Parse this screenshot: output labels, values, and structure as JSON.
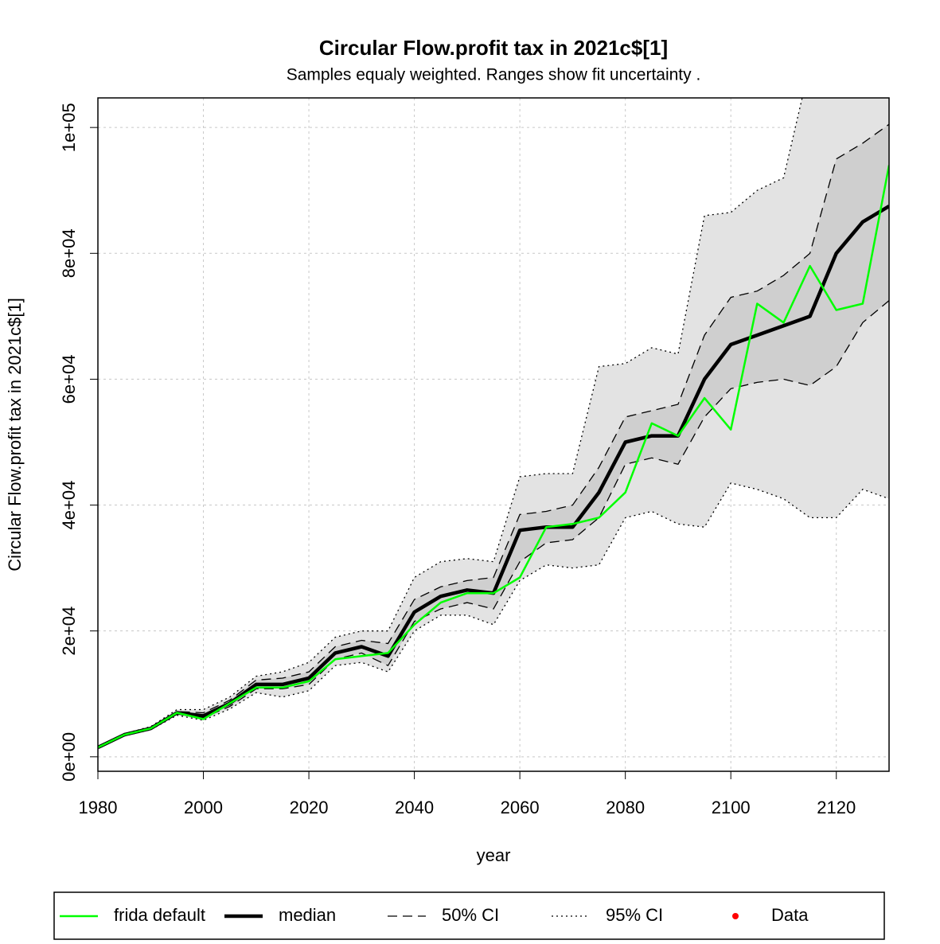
{
  "chart_data": {
    "type": "line",
    "title": "Circular Flow.profit tax in 2021c$[1]",
    "subtitle": "Samples equaly weighted. Ranges show  fit uncertainty .",
    "x_label": "year",
    "y_label": "Circular Flow.profit tax in 2021c$[1]",
    "x": [
      1980,
      1985,
      1990,
      1995,
      2000,
      2005,
      2010,
      2015,
      2020,
      2025,
      2030,
      2035,
      2040,
      2045,
      2050,
      2055,
      2060,
      2065,
      2070,
      2075,
      2080,
      2085,
      2090,
      2095,
      2100,
      2105,
      2110,
      2115,
      2120,
      2125,
      2130
    ],
    "series": [
      {
        "name": "frida default",
        "color": "#00ff00",
        "style": "solid",
        "values": [
          1500,
          3500,
          4500,
          7000,
          6000,
          8500,
          11000,
          11000,
          12000,
          15500,
          16000,
          16500,
          21000,
          24500,
          26000,
          26000,
          28500,
          36500,
          37000,
          38000,
          42000,
          53000,
          51000,
          57000,
          52000,
          72000,
          69000,
          78000,
          71000,
          72000,
          94000
        ]
      },
      {
        "name": "median",
        "color": "#000000",
        "style": "thick",
        "values": [
          1500,
          3500,
          4500,
          7000,
          6500,
          8500,
          11500,
          11500,
          12500,
          16500,
          17500,
          16000,
          23000,
          25500,
          26500,
          26000,
          36000,
          36500,
          36500,
          42000,
          50000,
          51000,
          51000,
          60000,
          65500,
          67000,
          68500,
          70000,
          80000,
          85000,
          87500
        ]
      },
      {
        "name": "50% CI",
        "color": "#000000",
        "style": "dashed",
        "band_color": "#cfcfcf",
        "lower": [
          1500,
          3400,
          4400,
          6800,
          6200,
          8000,
          10800,
          10800,
          11500,
          15500,
          16500,
          14500,
          21500,
          23500,
          24500,
          23500,
          31000,
          34000,
          34500,
          38000,
          46500,
          47500,
          46500,
          54000,
          58500,
          59500,
          60000,
          59000,
          62000,
          69000,
          72500
        ],
        "upper": [
          1600,
          3600,
          4600,
          7200,
          7000,
          9000,
          12200,
          12500,
          13500,
          17500,
          18500,
          18000,
          25000,
          27000,
          28000,
          28500,
          38500,
          39000,
          40000,
          46000,
          54000,
          55000,
          56000,
          67000,
          73000,
          74000,
          76500,
          80000,
          95000,
          97500,
          100500
        ]
      },
      {
        "name": "95% CI",
        "color": "#000000",
        "style": "dotted",
        "band_color": "#e3e3e3",
        "lower": [
          1400,
          3300,
          4300,
          6600,
          5800,
          7600,
          10200,
          9500,
          10500,
          14500,
          15000,
          13500,
          20000,
          22500,
          22500,
          21000,
          28000,
          30500,
          30000,
          30500,
          38000,
          39000,
          37000,
          36500,
          43500,
          42500,
          41000,
          38000,
          38000,
          42500,
          41000
        ],
        "upper": [
          1700,
          3700,
          4800,
          7500,
          7500,
          9500,
          12800,
          13500,
          15000,
          19000,
          20000,
          20000,
          28500,
          31000,
          31500,
          31000,
          44500,
          45000,
          45000,
          62000,
          62500,
          65000,
          64000,
          86000,
          86500,
          90000,
          92000,
          110000,
          115000,
          115000,
          115000
        ]
      },
      {
        "name": "Data",
        "color": "#ff0000",
        "style": "points",
        "values": [
          null,
          null,
          null,
          null,
          null,
          null,
          null,
          null,
          null,
          null,
          null,
          null,
          null,
          null,
          null,
          null,
          null,
          null,
          null,
          null,
          null,
          null,
          null,
          null,
          null,
          null,
          null,
          null,
          null,
          null,
          null
        ]
      }
    ],
    "xlim": [
      1980,
      2130
    ],
    "ylim": [
      -2300,
      104700
    ],
    "xticks": [
      1980,
      2000,
      2020,
      2040,
      2060,
      2080,
      2100,
      2120
    ],
    "yticks": [
      {
        "value": 0,
        "label": "0e+00"
      },
      {
        "value": 20000,
        "label": "2e+04"
      },
      {
        "value": 40000,
        "label": "4e+04"
      },
      {
        "value": 60000,
        "label": "6e+04"
      },
      {
        "value": 80000,
        "label": "8e+04"
      },
      {
        "value": 100000,
        "label": "1e+05"
      }
    ],
    "grid": true,
    "legend": "bottom"
  }
}
